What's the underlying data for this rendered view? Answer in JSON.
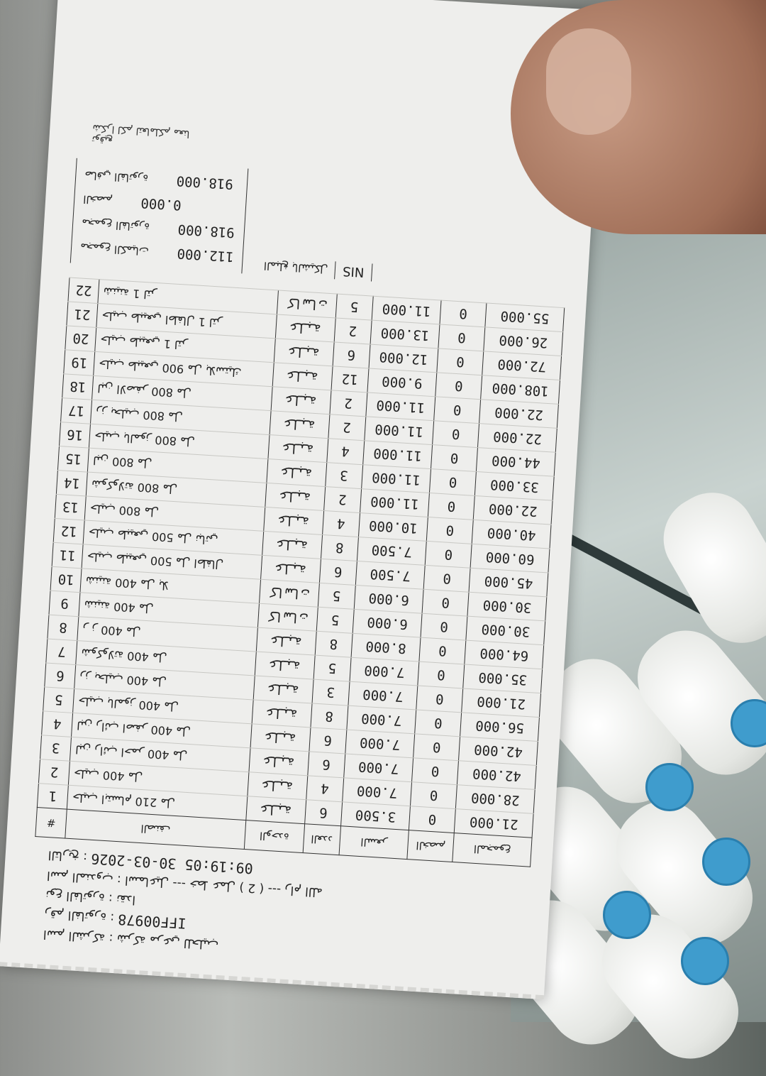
{
  "receipt": {
    "company": "اسم الشركة : شركة مرعي للحليب",
    "invoice_label": "رقم الفاتورة :",
    "invoice_number": "IFF00978",
    "invoice_type": "نوع الفاتورة : نقدا",
    "agent": "اسم المندوب : اسماعيل --- خط عمل ( 2 ) --- رام الله",
    "date_label": "التاريخ :",
    "datetime": "2026-03-30 09:19:05",
    "columns": [
      "#",
      "الصنف",
      "الوحدة",
      "العدد",
      "السعر",
      "الخصم",
      "المجموع"
    ],
    "items": [
      {
        "no": "1",
        "name": "حليب ابتسام 210 مل",
        "unit": "علبة",
        "qty": "6",
        "price": "3.500",
        "discount": "0",
        "total": "21.000"
      },
      {
        "no": "2",
        "name": "حليب 400 مل",
        "unit": "علبة",
        "qty": "4",
        "price": "7.000",
        "discount": "0",
        "total": "28.000"
      },
      {
        "no": "3",
        "name": "لبن رائب احمر 400 مل",
        "unit": "علبة",
        "qty": "6",
        "price": "7.000",
        "discount": "0",
        "total": "42.000"
      },
      {
        "no": "4",
        "name": "لبن رائب اصفر 400 مل",
        "unit": "علبة",
        "qty": "6",
        "price": "7.000",
        "discount": "0",
        "total": "42.000"
      },
      {
        "no": "5",
        "name": "حليب بالموز 400 مل",
        "unit": "علبة",
        "qty": "8",
        "price": "7.000",
        "discount": "0",
        "total": "56.000"
      },
      {
        "no": "6",
        "name": "رز بحليب 400 مل",
        "unit": "علبة",
        "qty": "3",
        "price": "7.000",
        "discount": "0",
        "total": "21.000"
      },
      {
        "no": "7",
        "name": "شوكولاتة 400 مل",
        "unit": "علبة",
        "qty": "5",
        "price": "7.000",
        "discount": "0",
        "total": "35.000"
      },
      {
        "no": "8",
        "name": "ر ز 400 مل",
        "unit": "علبة",
        "qty": "8",
        "price": "8.000",
        "discount": "0",
        "total": "64.000"
      },
      {
        "no": "9",
        "name": "شنينة 400 مل",
        "unit": "كاسات",
        "qty": "5",
        "price": "6.000",
        "discount": "0",
        "total": "30.000"
      },
      {
        "no": "10",
        "name": "شنينة 400 مل بلا",
        "unit": "كاسات",
        "qty": "5",
        "price": "6.000",
        "discount": "0",
        "total": "30.000"
      },
      {
        "no": "11",
        "name": "حليب طبيعي 500 مل اطفال",
        "unit": "علبة",
        "qty": "6",
        "price": "7.500",
        "discount": "0",
        "total": "45.000"
      },
      {
        "no": "12",
        "name": "حليب طبيعي 500 مل نباتي",
        "unit": "علبة",
        "qty": "8",
        "price": "7.500",
        "discount": "0",
        "total": "60.000"
      },
      {
        "no": "13",
        "name": "حليب 800 مل",
        "unit": "علبة",
        "qty": "4",
        "price": "10.000",
        "discount": "0",
        "total": "40.000"
      },
      {
        "no": "14",
        "name": "شوكولاتة 800 مل",
        "unit": "علبة",
        "qty": "2",
        "price": "11.000",
        "discount": "0",
        "total": "22.000"
      },
      {
        "no": "15",
        "name": "لبن 800 مل",
        "unit": "علبة",
        "qty": "3",
        "price": "11.000",
        "discount": "0",
        "total": "33.000"
      },
      {
        "no": "16",
        "name": "حليب بالموز 800 مل",
        "unit": "علبة",
        "qty": "4",
        "price": "11.000",
        "discount": "0",
        "total": "44.000"
      },
      {
        "no": "17",
        "name": "رز بحليب 800 مل",
        "unit": "علبة",
        "qty": "2",
        "price": "11.000",
        "discount": "0",
        "total": "22.000"
      },
      {
        "no": "18",
        "name": "لبن الاصفر 800 مل",
        "unit": "علبة",
        "qty": "2",
        "price": "11.000",
        "discount": "0",
        "total": "22.000"
      },
      {
        "no": "19",
        "name": "حليب طبيعي 900 مل بلاستيك",
        "unit": "علبة",
        "qty": "12",
        "price": "9.000",
        "discount": "0",
        "total": "108.000"
      },
      {
        "no": "20",
        "name": "حليب طبيعي 1 لتر",
        "unit": "علبة",
        "qty": "6",
        "price": "12.000",
        "discount": "0",
        "total": "72.000"
      },
      {
        "no": "21",
        "name": "حليب طبيعي اطفال 1 لتر",
        "unit": "علبة",
        "qty": "2",
        "price": "13.000",
        "discount": "0",
        "total": "26.000"
      },
      {
        "no": "22",
        "name": "شنينة 1 لتر",
        "unit": "كاسات",
        "qty": "5",
        "price": "11.000",
        "discount": "0",
        "total": "55.000"
      }
    ],
    "summary": [
      {
        "label": "مجموع الكميات",
        "value": "112.000"
      },
      {
        "label": "مجموع الفاتورة",
        "value": "918.000"
      },
      {
        "label": "الخصم",
        "value": "0.000"
      },
      {
        "label": "صافي الفاتورة",
        "value": "918.000"
      }
    ],
    "currency_label": "المبلغ بالشيكل",
    "currency": "NIS",
    "signature_label": "توقيع",
    "footer": "شكرا لكم لتعاملكم معنا"
  },
  "colors": {
    "paper": "#eeeeec",
    "bottle_cap": "#3f9ccd"
  }
}
